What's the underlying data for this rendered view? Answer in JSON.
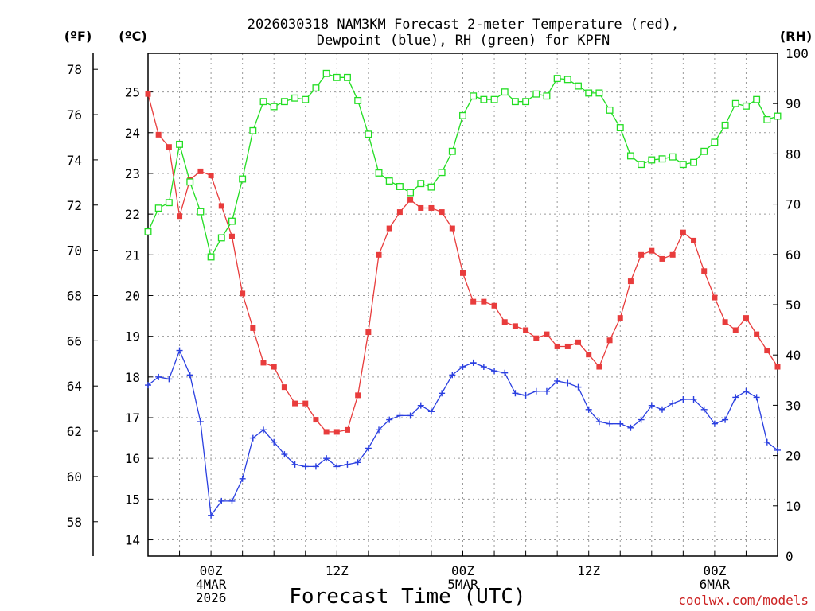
{
  "chart_data": {
    "type": "line",
    "title_lines": [
      "2026030318 NAM3KM Forecast 2-meter Temperature (red),",
      "Dewpoint (blue), RH (green) for KPFN"
    ],
    "xlabel": "Forecast Time (UTC)",
    "credit": "coolwx.com/models",
    "units": {
      "fahrenheit": "(ºF)",
      "celsius": "(ºC)",
      "rh": "(RH)"
    },
    "x_range_hours": [
      -6,
      54
    ],
    "x_ticks": [
      {
        "hour": 0,
        "lines": [
          "00Z",
          "4MAR",
          "2026"
        ]
      },
      {
        "hour": 12,
        "lines": [
          "12Z"
        ]
      },
      {
        "hour": 24,
        "lines": [
          "00Z",
          "5MAR"
        ]
      },
      {
        "hour": 36,
        "lines": [
          "12Z"
        ]
      },
      {
        "hour": 48,
        "lines": [
          "00Z",
          "6MAR"
        ]
      }
    ],
    "celsius_axis": {
      "range": [
        13.6,
        25.95
      ],
      "ticks": [
        "14",
        "15",
        "16",
        "17",
        "18",
        "19",
        "20",
        "21",
        "22",
        "23",
        "24",
        "25"
      ]
    },
    "fahrenheit_axis": {
      "ticks": [
        "58",
        "60",
        "62",
        "64",
        "66",
        "68",
        "70",
        "72",
        "74",
        "76",
        "78"
      ]
    },
    "rh_axis": {
      "range": [
        0,
        100
      ],
      "ticks": [
        "0",
        "10",
        "20",
        "30",
        "40",
        "50",
        "60",
        "70",
        "80",
        "90",
        "100"
      ]
    },
    "colors": {
      "temperature": "#e83c3c",
      "dewpoint": "#2a3fe0",
      "rh": "#22dd22"
    },
    "series": [
      {
        "name": "Temperature",
        "axis": "celsius",
        "marker": "filled-square",
        "x": [
          -6,
          -5,
          -4,
          -3,
          -2,
          -1,
          0,
          1,
          2,
          3,
          4,
          5,
          6,
          7,
          8,
          9,
          10,
          11,
          12,
          13,
          14,
          15,
          16,
          17,
          18,
          19,
          20,
          21,
          22,
          23,
          24,
          25,
          26,
          27,
          28,
          29,
          30,
          31,
          32,
          33,
          34,
          35,
          36,
          37,
          38,
          39,
          40,
          41,
          42,
          43,
          44,
          45,
          46,
          47,
          48,
          49,
          50,
          51,
          52,
          53,
          54
        ],
        "values": [
          24.95,
          23.95,
          23.65,
          21.95,
          22.85,
          23.05,
          22.95,
          22.2,
          21.45,
          20.05,
          19.2,
          18.35,
          18.25,
          17.75,
          17.35,
          17.35,
          16.95,
          16.65,
          16.65,
          16.7,
          17.55,
          19.1,
          21.0,
          21.65,
          22.05,
          22.35,
          22.15,
          22.15,
          22.05,
          21.65,
          20.55,
          19.85,
          19.85,
          19.75,
          19.35,
          19.25,
          19.15,
          18.95,
          19.05,
          18.75,
          18.75,
          18.85,
          18.55,
          18.25,
          18.9,
          19.45,
          20.35,
          21.0,
          21.1,
          20.9,
          21.0,
          21.55,
          21.35,
          20.6,
          19.95,
          19.35,
          19.15,
          19.45,
          19.05,
          18.65,
          18.25
        ]
      },
      {
        "name": "Dewpoint",
        "axis": "celsius",
        "marker": "plus",
        "x": [
          -6,
          -5,
          -4,
          -3,
          -2,
          -1,
          0,
          1,
          2,
          3,
          4,
          5,
          6,
          7,
          8,
          9,
          10,
          11,
          12,
          13,
          14,
          15,
          16,
          17,
          18,
          19,
          20,
          21,
          22,
          23,
          24,
          25,
          26,
          27,
          28,
          29,
          30,
          31,
          32,
          33,
          34,
          35,
          36,
          37,
          38,
          39,
          40,
          41,
          42,
          43,
          44,
          45,
          46,
          47,
          48,
          49,
          50,
          51,
          52,
          53,
          54
        ],
        "values": [
          17.8,
          18.0,
          17.95,
          18.65,
          18.05,
          16.9,
          14.6,
          14.95,
          14.95,
          15.5,
          16.5,
          16.7,
          16.4,
          16.1,
          15.85,
          15.8,
          15.8,
          16.0,
          15.8,
          15.85,
          15.9,
          16.25,
          16.7,
          16.95,
          17.05,
          17.05,
          17.3,
          17.15,
          17.6,
          18.05,
          18.25,
          18.35,
          18.25,
          18.15,
          18.1,
          17.6,
          17.55,
          17.65,
          17.65,
          17.9,
          17.85,
          17.75,
          17.2,
          16.9,
          16.85,
          16.85,
          16.75,
          16.95,
          17.3,
          17.2,
          17.35,
          17.45,
          17.45,
          17.2,
          16.85,
          16.95,
          17.5,
          17.65,
          17.5,
          16.4,
          16.2
        ]
      },
      {
        "name": "RH",
        "axis": "rh",
        "marker": "open-square",
        "x": [
          -6,
          -5,
          -4,
          -3,
          -2,
          -1,
          0,
          1,
          2,
          3,
          4,
          5,
          6,
          7,
          8,
          9,
          10,
          11,
          12,
          13,
          14,
          15,
          16,
          17,
          18,
          19,
          20,
          21,
          22,
          23,
          24,
          25,
          26,
          27,
          28,
          29,
          30,
          31,
          32,
          33,
          34,
          35,
          36,
          37,
          38,
          39,
          40,
          41,
          42,
          43,
          44,
          45,
          46,
          47,
          48,
          49,
          50,
          51,
          52,
          53,
          54
        ],
        "values": [
          64.5,
          69.2,
          70.3,
          81.9,
          74.4,
          68.5,
          59.5,
          63.3,
          66.6,
          75.0,
          84.6,
          90.4,
          89.4,
          90.4,
          91.1,
          90.8,
          93.1,
          96.0,
          95.2,
          95.2,
          90.6,
          83.9,
          76.2,
          74.6,
          73.5,
          72.3,
          74.1,
          73.4,
          76.3,
          80.5,
          87.6,
          91.5,
          90.8,
          90.8,
          92.3,
          90.4,
          90.4,
          91.9,
          91.5,
          95.0,
          94.8,
          93.5,
          92.1,
          92.1,
          88.7,
          85.2,
          79.6,
          77.9,
          78.8,
          79.0,
          79.4,
          77.9,
          78.3,
          80.5,
          82.3,
          85.7,
          90.0,
          89.5,
          90.8,
          86.8,
          87.5
        ]
      }
    ]
  }
}
